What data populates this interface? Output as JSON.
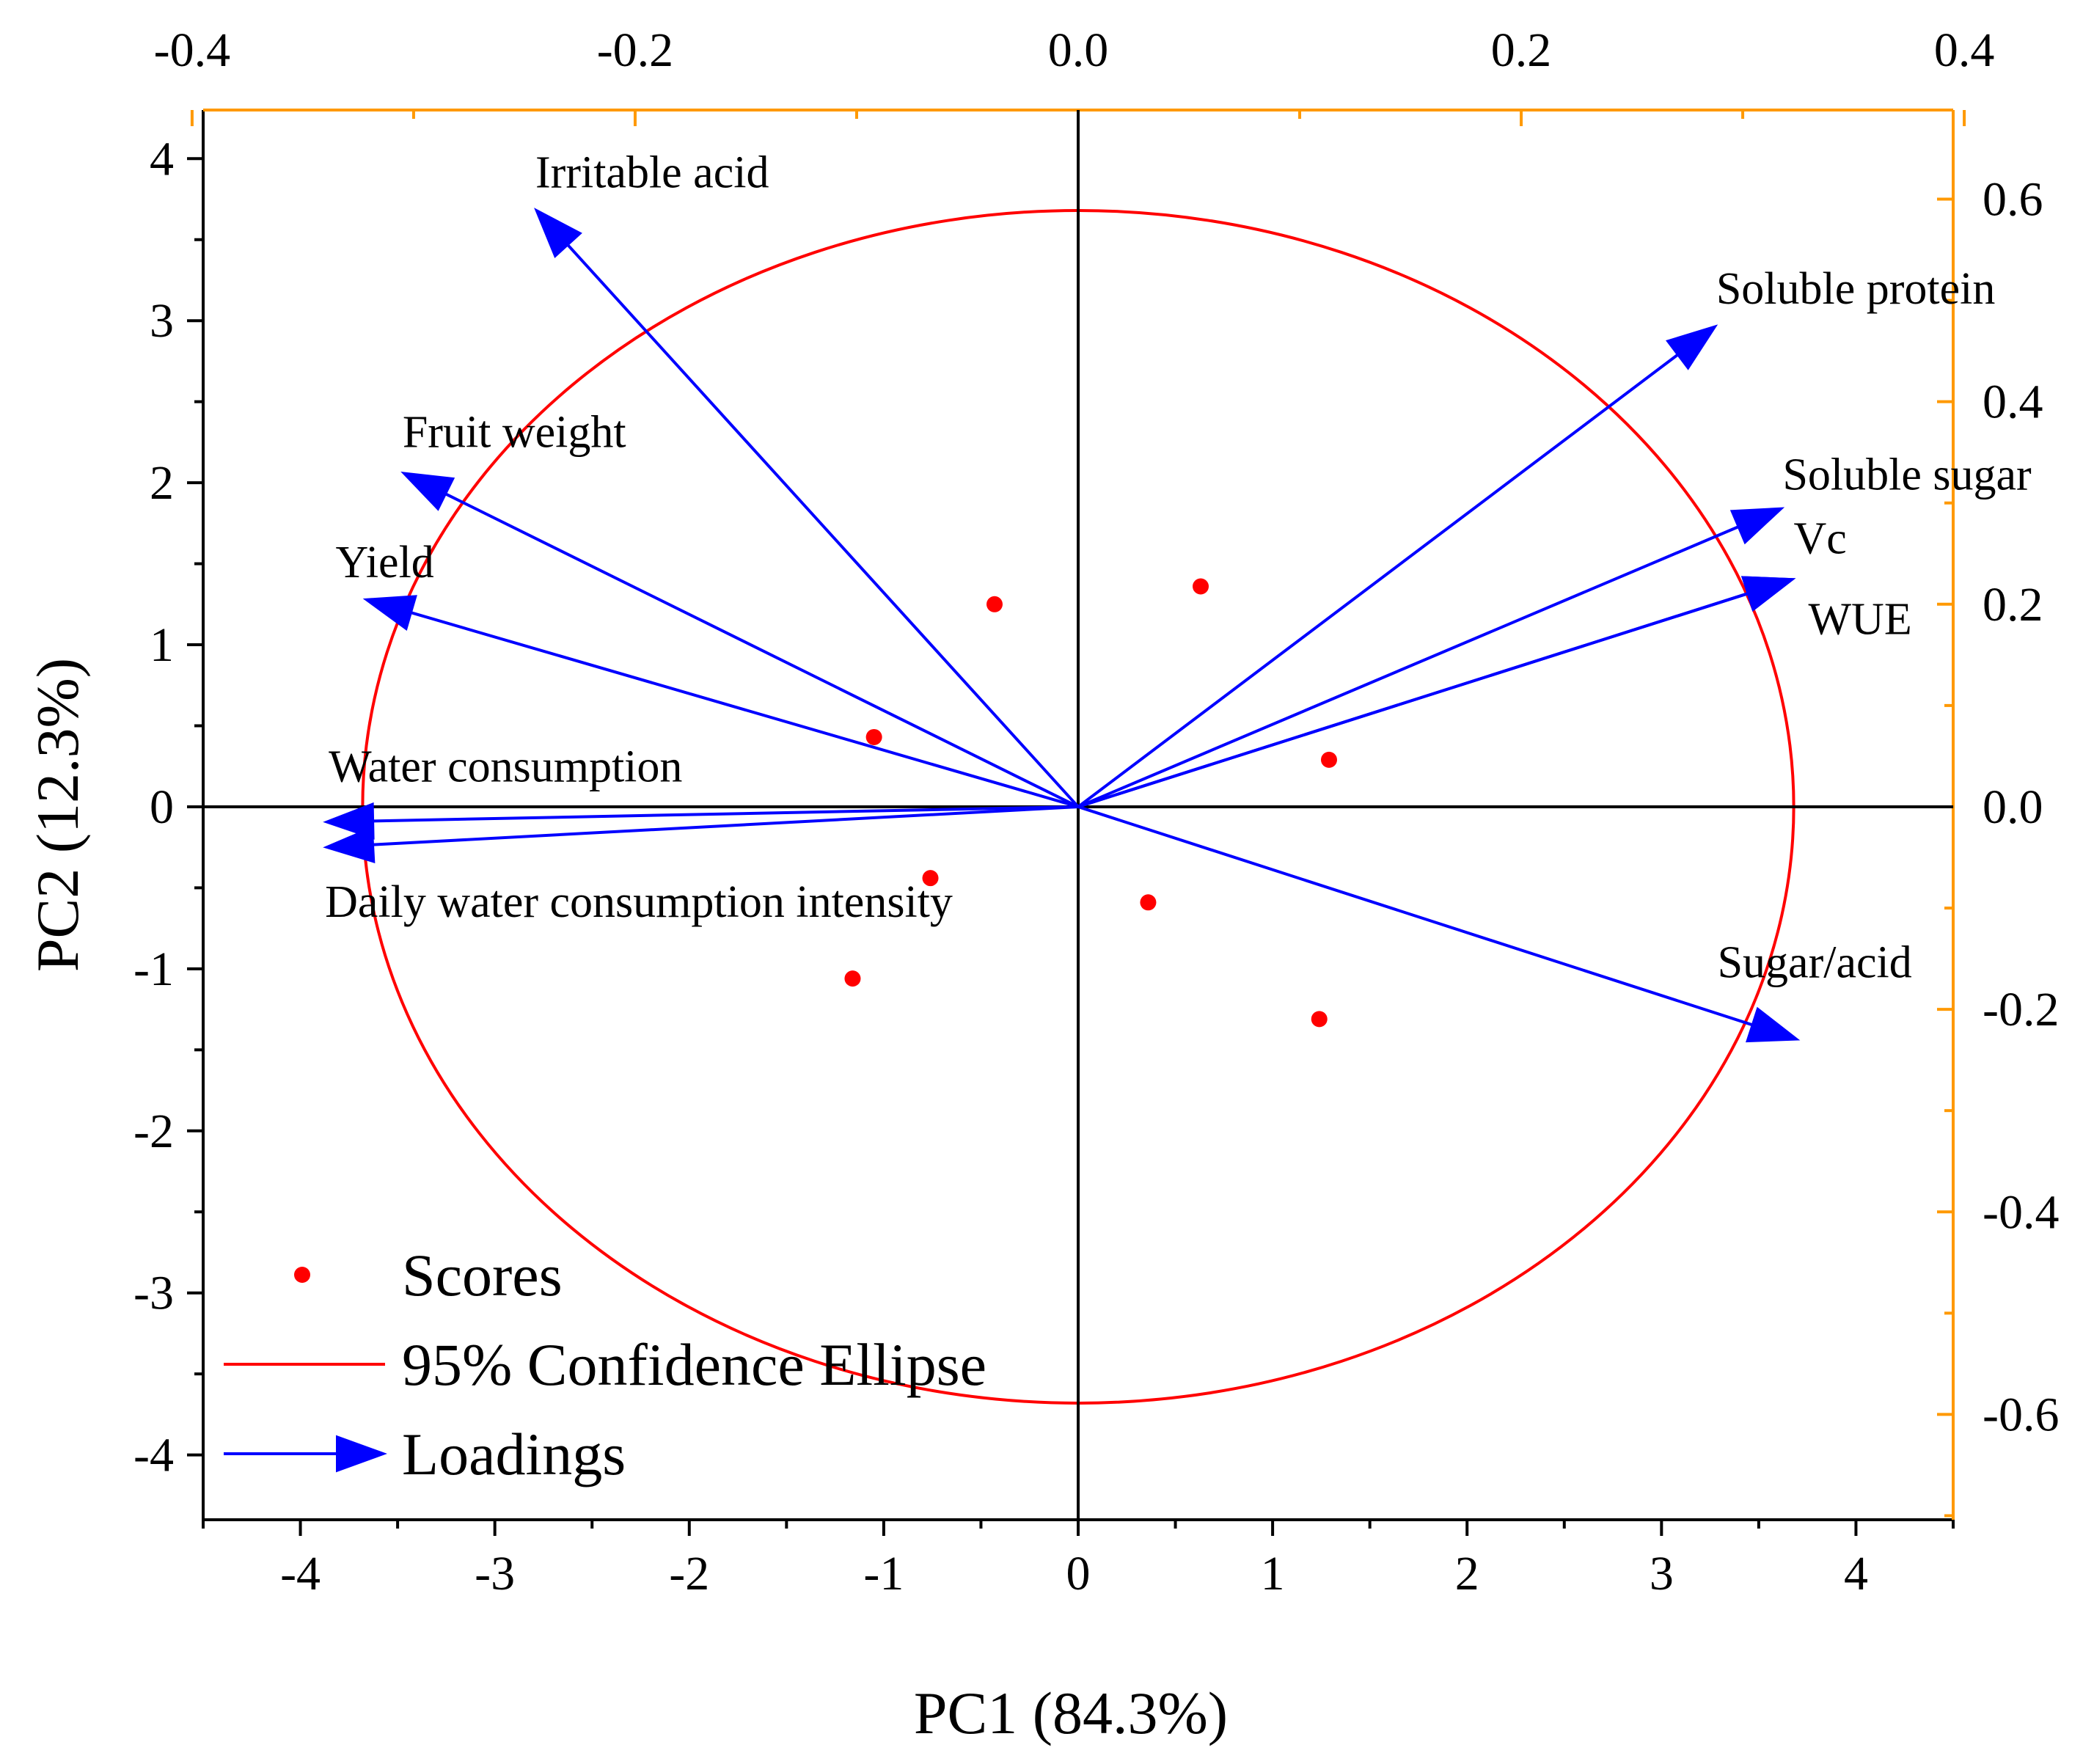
{
  "chart_data": {
    "type": "biplot",
    "title": "",
    "xlabel": "PC1 (84.3%)",
    "ylabel": "PC2 (12.3%)",
    "score_axes": {
      "xlim": [
        -4.5,
        4.5
      ],
      "ylim": [
        -4.4,
        4.3
      ],
      "xticks": [
        "-4",
        "-3",
        "-2",
        "-1",
        "0",
        "1",
        "2",
        "3",
        "4"
      ],
      "yticks": [
        "-4",
        "-3",
        "-2",
        "-1",
        "0",
        "1",
        "2",
        "3",
        "4"
      ]
    },
    "loading_axes": {
      "xlim": [
        -0.395,
        0.395
      ],
      "ylim": [
        -0.704,
        0.688
      ],
      "xticks": [
        "-0.4",
        "-0.2",
        "0.0",
        "0.2",
        "0.4"
      ],
      "yticks": [
        "-0.6",
        "-0.4",
        "-0.2",
        "0.0",
        "0.2",
        "0.4",
        "0.6"
      ]
    },
    "scores": [
      {
        "x": -0.43,
        "y": 1.25
      },
      {
        "x": 0.63,
        "y": 1.36
      },
      {
        "x": -1.05,
        "y": 0.43
      },
      {
        "x": 1.29,
        "y": 0.29
      },
      {
        "x": -0.76,
        "y": -0.44
      },
      {
        "x": 0.36,
        "y": -0.59
      },
      {
        "x": -1.16,
        "y": -1.06
      },
      {
        "x": 1.24,
        "y": -1.31
      }
    ],
    "loadings": [
      {
        "name": "Irritable acid",
        "x": -0.245,
        "y": 0.59
      },
      {
        "name": "Soluble protein",
        "x": 0.288,
        "y": 0.475
      },
      {
        "name": "Fruit weight",
        "x": -0.305,
        "y": 0.33
      },
      {
        "name": "Soluble sugar",
        "x": 0.318,
        "y": 0.295
      },
      {
        "name": "Vc",
        "x": 0.323,
        "y": 0.225
      },
      {
        "name": "Yield",
        "x": -0.322,
        "y": 0.205
      },
      {
        "name": "WUE",
        "x": 0.323,
        "y": 0.225
      },
      {
        "name": "Water consumption",
        "x": -0.34,
        "y": -0.015
      },
      {
        "name": "Daily water consumption intensity",
        "x": -0.34,
        "y": -0.04
      },
      {
        "name": "Sugar/acid",
        "x": 0.325,
        "y": -0.23
      }
    ],
    "ellipse": {
      "label": "95% Confidence Ellipse",
      "center": [
        0,
        0
      ],
      "rx": 3.68,
      "ry": 3.68
    },
    "legend": {
      "placement": "bottom-left",
      "items": [
        {
          "label": "Scores",
          "kind": "marker"
        },
        {
          "label": "95% Confidence Ellipse",
          "kind": "line"
        },
        {
          "label": "Loadings",
          "kind": "arrow"
        }
      ]
    },
    "colors": {
      "scores": "#ff0000",
      "ellipse": "#ff0000",
      "loadings": "#0000ff",
      "secondary_axes": "#ff9900",
      "primary_axes": "#000000"
    }
  }
}
